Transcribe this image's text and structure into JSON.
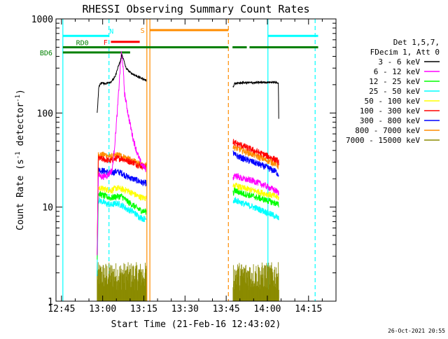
{
  "chart_data": {
    "type": "line",
    "title": "RHESSI Observing Summary Count Rates",
    "xlabel": "Start Time (21-Feb-16 12:43:02)",
    "ylabel_main": "Count Rate (s",
    "ylabel_sup1": "-1",
    "ylabel_mid": " detector",
    "ylabel_sup2": "-1",
    "ylabel_end": ")",
    "y_scale": "log",
    "ylim": [
      1,
      1000
    ],
    "xlim_minutes": [
      -2,
      100
    ],
    "x_ticks": [
      {
        "m": 0,
        "label": "12:45"
      },
      {
        "m": 15,
        "label": "13:00"
      },
      {
        "m": 30,
        "label": "13:15"
      },
      {
        "m": 45,
        "label": "13:30"
      },
      {
        "m": 60,
        "label": "13:45"
      },
      {
        "m": 75,
        "label": "14:00"
      },
      {
        "m": 90,
        "label": "14:15"
      }
    ],
    "y_ticks": [
      {
        "v": 1,
        "label": "1"
      },
      {
        "v": 10,
        "label": "10"
      },
      {
        "v": 100,
        "label": "100"
      },
      {
        "v": 1000,
        "label": "1000"
      }
    ],
    "legend_header": [
      "Det 1,5,7,",
      "FDecim 1, Att 0"
    ],
    "series": [
      {
        "name": "3 - 6 keV",
        "color": "#000000"
      },
      {
        "name": "6 - 12 keV",
        "color": "#ff00ff"
      },
      {
        "name": "12 - 25 keV",
        "color": "#00ff00"
      },
      {
        "name": "25 - 50 keV",
        "color": "#00ffff"
      },
      {
        "name": "50 - 100 keV",
        "color": "#ffff00"
      },
      {
        "name": "100 - 300 keV",
        "color": "#ff0000"
      },
      {
        "name": "300 - 800 keV",
        "color": "#0000ff"
      },
      {
        "name": "800 - 7000 keV",
        "color": "#ff8c00"
      },
      {
        "name": "7000 - 15000 keV",
        "color": "#8b8b00"
      }
    ],
    "segments": [
      {
        "start": 13.0,
        "end": 30.9,
        "levels": {
          "3 - 6 keV": [
            [
              13.0,
              100
            ],
            [
              13.6,
              190
            ],
            [
              14.5,
              210
            ],
            [
              16.0,
              205
            ],
            [
              18.0,
              215
            ],
            [
              19.5,
              240
            ],
            [
              20.5,
              300
            ],
            [
              21.5,
              360
            ],
            [
              22.0,
              420
            ],
            [
              22.5,
              380
            ],
            [
              23.5,
              300
            ],
            [
              25.0,
              270
            ],
            [
              27.0,
              250
            ],
            [
              29.0,
              235
            ],
            [
              30.5,
              225
            ],
            [
              30.9,
              220
            ]
          ],
          "6 - 12 keV": [
            [
              13.0,
              3
            ],
            [
              13.4,
              22
            ],
            [
              15.0,
              21
            ],
            [
              17.0,
              22
            ],
            [
              18.5,
              25
            ],
            [
              19.5,
              50
            ],
            [
              20.5,
              120
            ],
            [
              21.2,
              250
            ],
            [
              21.8,
              430
            ],
            [
              22.3,
              350
            ],
            [
              23.0,
              160
            ],
            [
              24.5,
              90
            ],
            [
              26.0,
              55
            ],
            [
              27.5,
              38
            ],
            [
              29.0,
              29
            ],
            [
              30.9,
              25
            ]
          ],
          "12 - 25 keV": [
            [
              13.0,
              3
            ],
            [
              13.4,
              14
            ],
            [
              16.0,
              13
            ],
            [
              18.0,
              12.5
            ],
            [
              20.0,
              13
            ],
            [
              22.0,
              13
            ],
            [
              24.0,
              11.5
            ],
            [
              26.0,
              10.5
            ],
            [
              28.0,
              9.5
            ],
            [
              30.0,
              9
            ],
            [
              30.9,
              9
            ]
          ],
          "25 - 50 keV": [
            [
              13.0,
              2
            ],
            [
              13.4,
              12
            ],
            [
              16.0,
              11
            ],
            [
              18.0,
              10.5
            ],
            [
              20.0,
              11
            ],
            [
              22.0,
              10.5
            ],
            [
              24.0,
              9.5
            ],
            [
              26.0,
              9
            ],
            [
              28.0,
              8
            ],
            [
              30.0,
              7.5
            ],
            [
              30.9,
              7.5
            ]
          ],
          "50 - 100 keV": [
            [
              13.0,
              2
            ],
            [
              13.4,
              16
            ],
            [
              16.0,
              15.5
            ],
            [
              18.0,
              15
            ],
            [
              20.0,
              16
            ],
            [
              22.0,
              15.5
            ],
            [
              24.0,
              15
            ],
            [
              26.0,
              14
            ],
            [
              28.0,
              13
            ],
            [
              30.0,
              12.5
            ],
            [
              30.9,
              12.5
            ]
          ],
          "100 - 300 keV": [
            [
              13.0,
              3
            ],
            [
              13.4,
              33
            ],
            [
              16.0,
              32
            ],
            [
              18.0,
              31
            ],
            [
              20.0,
              33
            ],
            [
              22.0,
              33
            ],
            [
              24.0,
              31
            ],
            [
              26.0,
              30
            ],
            [
              28.0,
              28
            ],
            [
              30.0,
              27
            ],
            [
              30.9,
              27
            ]
          ],
          "300 - 800 keV": [
            [
              13.0,
              2
            ],
            [
              13.4,
              25
            ],
            [
              16.0,
              24
            ],
            [
              18.0,
              23
            ],
            [
              20.0,
              24
            ],
            [
              22.0,
              23
            ],
            [
              24.0,
              21
            ],
            [
              26.0,
              20
            ],
            [
              28.0,
              19
            ],
            [
              30.0,
              18
            ],
            [
              30.9,
              18
            ]
          ],
          "800 - 7000 keV": [
            [
              13.0,
              3
            ],
            [
              13.4,
              36
            ],
            [
              16.0,
              36
            ],
            [
              18.0,
              34
            ],
            [
              20.0,
              36
            ],
            [
              22.0,
              35
            ],
            [
              24.0,
              33
            ],
            [
              26.0,
              31
            ],
            [
              28.0,
              29
            ],
            [
              30.0,
              28
            ],
            [
              30.9,
              28
            ]
          ],
          "7000 - 15000 keV": [
            [
              13.0,
              1.6
            ],
            [
              30.9,
              1.6
            ]
          ]
        }
      },
      {
        "start": 62.5,
        "end": 79.2,
        "levels": {
          "3 - 6 keV": [
            [
              62.5,
              190
            ],
            [
              63.0,
              205
            ],
            [
              66.0,
              210
            ],
            [
              70.0,
              210
            ],
            [
              74.0,
              212
            ],
            [
              78.0,
              212
            ],
            [
              79.0,
              210
            ],
            [
              79.2,
              60
            ]
          ],
          "6 - 12 keV": [
            [
              62.5,
              20
            ],
            [
              63.0,
              22
            ],
            [
              66.0,
              20
            ],
            [
              70.0,
              19
            ],
            [
              74.0,
              17
            ],
            [
              78.0,
              15
            ],
            [
              79.2,
              14
            ]
          ],
          "12 - 25 keV": [
            [
              62.5,
              14
            ],
            [
              63.0,
              15
            ],
            [
              66.0,
              14
            ],
            [
              70.0,
              13
            ],
            [
              74.0,
              12
            ],
            [
              78.0,
              11
            ],
            [
              79.2,
              10.5
            ]
          ],
          "25 - 50 keV": [
            [
              62.5,
              11
            ],
            [
              63.0,
              12
            ],
            [
              66.0,
              11
            ],
            [
              70.0,
              10
            ],
            [
              74.0,
              9
            ],
            [
              78.0,
              8
            ],
            [
              79.2,
              7.5
            ]
          ],
          "50 - 100 keV": [
            [
              62.5,
              16
            ],
            [
              63.0,
              17
            ],
            [
              66.0,
              16
            ],
            [
              70.0,
              15
            ],
            [
              74.0,
              14
            ],
            [
              78.0,
              13
            ],
            [
              79.2,
              12.5
            ]
          ],
          "100 - 300 keV": [
            [
              62.5,
              50
            ],
            [
              63.0,
              48
            ],
            [
              66.0,
              45
            ],
            [
              70.0,
              40
            ],
            [
              74.0,
              36
            ],
            [
              78.0,
              32
            ],
            [
              79.2,
              30
            ]
          ],
          "300 - 800 keV": [
            [
              62.5,
              38
            ],
            [
              63.0,
              36
            ],
            [
              66.0,
              33
            ],
            [
              70.0,
              30
            ],
            [
              74.0,
              27
            ],
            [
              78.0,
              24
            ],
            [
              79.2,
              22
            ]
          ],
          "800 - 7000 keV": [
            [
              62.5,
              45
            ],
            [
              63.0,
              43
            ],
            [
              66.0,
              40
            ],
            [
              70.0,
              36
            ],
            [
              74.0,
              32
            ],
            [
              78.0,
              29
            ],
            [
              79.2,
              27
            ]
          ],
          "7000 - 15000 keV": [
            [
              62.5,
              1.6
            ],
            [
              79.2,
              1.6
            ]
          ]
        }
      }
    ],
    "vertical_markers": [
      {
        "m": 0.5,
        "color": "#00ffff",
        "style": "solid"
      },
      {
        "m": 17.3,
        "color": "#00ffff",
        "style": "dashed"
      },
      {
        "m": 31.1,
        "color": "#ff8c00",
        "style": "solid"
      },
      {
        "m": 32.2,
        "color": "#ff8c00",
        "style": "solid"
      },
      {
        "m": 60.8,
        "color": "#ff8c00",
        "style": "dashed"
      },
      {
        "m": 75.2,
        "color": "#00ffff",
        "style": "solid"
      },
      {
        "m": 92.4,
        "color": "#00ffff",
        "style": "dashed"
      }
    ],
    "flag_bars": [
      {
        "label": "N",
        "color": "#00ffff",
        "y": 660,
        "x_ranges": [
          [
            0.5,
            17.3
          ],
          [
            75.2,
            93.5
          ]
        ],
        "label_m": 18.2,
        "label_pos": "above"
      },
      {
        "label": "S",
        "color": "#ff8c00",
        "y": 760,
        "x_ranges": [
          [
            32.2,
            60.8
          ]
        ],
        "label_m": 30.3,
        "label_pos": "left"
      },
      {
        "label": "F",
        "color": "#ff0000",
        "y": 570,
        "x_ranges": [
          [
            18.0,
            28.5
          ]
        ],
        "label_m": 16.8,
        "label_pos": "left"
      },
      {
        "label": "RD0",
        "color": "#008000",
        "y": 500,
        "x_ranges": [
          [
            0.5,
            60.8
          ],
          [
            62.3,
            67.5
          ],
          [
            68.5,
            93.5
          ]
        ],
        "label_m": 7.6,
        "label_pos": "above"
      },
      {
        "label": "BD6",
        "color": "#008000",
        "y": 440,
        "x_ranges": [
          [
            0.5,
            25.0
          ]
        ],
        "label_m": -3.3,
        "label_pos": "left"
      }
    ]
  },
  "timestamp": "26-Oct-2021 20:55"
}
